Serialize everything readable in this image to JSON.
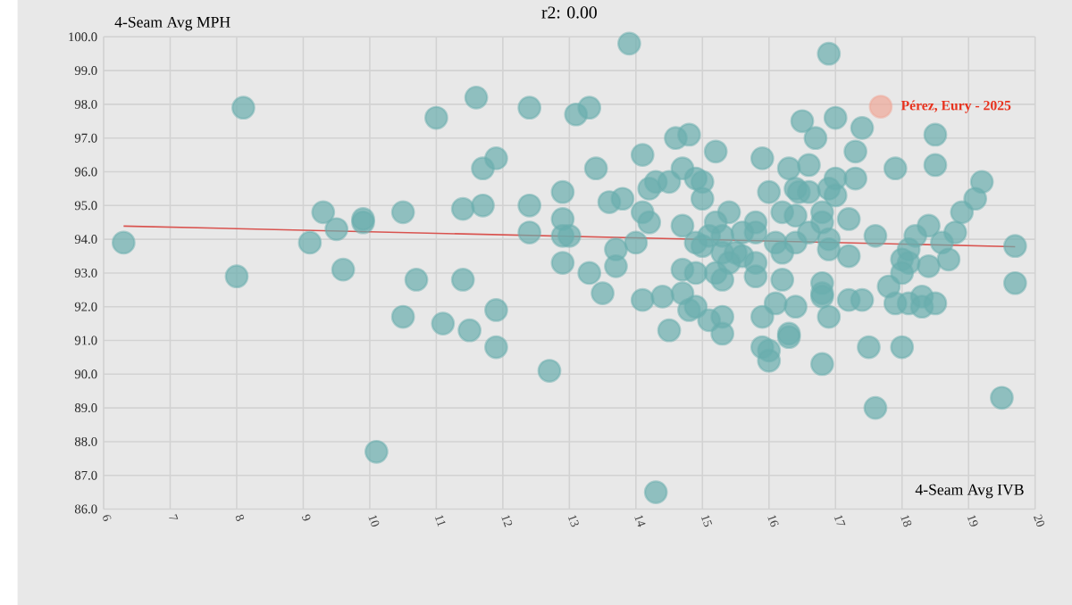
{
  "chart_data": {
    "type": "scatter",
    "title": "r2: 0.00",
    "xlabel": "4-Seam Avg IVB",
    "ylabel": "4-Seam Avg MPH",
    "xlim": [
      6,
      20
    ],
    "ylim": [
      86,
      100
    ],
    "xticks": [
      6,
      7,
      8,
      9,
      10,
      11,
      12,
      13,
      14,
      15,
      16,
      17,
      18,
      19,
      20
    ],
    "yticks": [
      {
        "value": 86,
        "label": "86.0"
      },
      {
        "value": 87,
        "label": "87.0"
      },
      {
        "value": 88,
        "label": "88.0"
      },
      {
        "value": 89,
        "label": "89.0"
      },
      {
        "value": 90,
        "label": "90.0"
      },
      {
        "value": 91,
        "label": "91.0"
      },
      {
        "value": 92,
        "label": "92.0"
      },
      {
        "value": 93,
        "label": "93.0"
      },
      {
        "value": 94,
        "label": "94.0"
      },
      {
        "value": 95,
        "label": "95.0"
      },
      {
        "value": 96,
        "label": "96.0"
      },
      {
        "value": 97,
        "label": "97.0"
      },
      {
        "value": 98,
        "label": "98.0"
      },
      {
        "value": 99,
        "label": "99.0"
      },
      {
        "value": 100,
        "label": "100.0"
      }
    ],
    "grid": true,
    "series": [
      {
        "color": "#6aaeae",
        "marker": "circle",
        "x": [
          6.3,
          8.0,
          8.1,
          9.1,
          9.3,
          9.5,
          9.6,
          9.9,
          9.9,
          10.1,
          10.5,
          10.5,
          10.7,
          11.0,
          11.1,
          11.4,
          11.4,
          11.5,
          11.6,
          11.7,
          11.7,
          11.9,
          11.9,
          11.9,
          12.4,
          12.4,
          12.4,
          12.7,
          13.9,
          13.1,
          13.3,
          16.9,
          16.5,
          17.0,
          17.4,
          16.7,
          18.5,
          14.6,
          14.8,
          14.1,
          15.2,
          15.9,
          17.3,
          13.4,
          14.7,
          16.3,
          16.6,
          17.9,
          18.5,
          14.3,
          14.5,
          14.9,
          15.0,
          14.2,
          17.0,
          17.3,
          19.2,
          12.9,
          16.0,
          16.4,
          16.45,
          16.6,
          16.9,
          17.0,
          15.0,
          19.1,
          13.6,
          13.8,
          14.1,
          15.4,
          16.2,
          16.4,
          16.8,
          18.9,
          12.9,
          14.2,
          14.7,
          15.2,
          15.8,
          16.8,
          17.2,
          18.4,
          15.8,
          15.6,
          15.3,
          16.6,
          18.8,
          12.9,
          13.0,
          14.0,
          14.9,
          15.0,
          15.1,
          16.1,
          16.4,
          16.9,
          17.6,
          18.2,
          18.6,
          19.7,
          13.7,
          15.3,
          15.5,
          15.6,
          16.2,
          16.9,
          18.1,
          18.0,
          12.9,
          13.7,
          15.4,
          15.8,
          17.2,
          18.1,
          18.7,
          18.4,
          13.3,
          14.7,
          14.9,
          15.2,
          15.8,
          18.0,
          15.3,
          16.2,
          16.8,
          17.8,
          19.7,
          13.5,
          14.7,
          16.8,
          14.1,
          14.4,
          14.8,
          14.9,
          14.5,
          15.1,
          15.3,
          15.3,
          15.9,
          16.1,
          16.4,
          16.9,
          16.3,
          16.3,
          15.9,
          16.0,
          16.0,
          16.8,
          16.8,
          17.2,
          17.4,
          17.9,
          18.1,
          18.3,
          18.3,
          18.5,
          17.5,
          18.0,
          17.6,
          19.5,
          14.3
        ],
        "values": [
          93.9,
          92.9,
          97.9,
          93.9,
          94.8,
          94.3,
          93.1,
          94.5,
          94.6,
          87.7,
          94.8,
          91.7,
          92.8,
          97.6,
          91.5,
          94.9,
          92.8,
          91.3,
          98.2,
          96.1,
          95.0,
          96.4,
          91.9,
          90.8,
          97.9,
          95.0,
          94.2,
          90.1,
          99.8,
          97.7,
          97.9,
          99.5,
          97.5,
          97.6,
          97.3,
          97.0,
          97.1,
          97.0,
          97.1,
          96.5,
          96.6,
          96.4,
          96.6,
          96.1,
          96.1,
          96.1,
          96.2,
          96.1,
          96.2,
          95.7,
          95.7,
          95.8,
          95.7,
          95.5,
          95.8,
          95.8,
          95.7,
          95.4,
          95.4,
          95.5,
          95.4,
          95.4,
          95.5,
          95.3,
          95.2,
          95.2,
          95.1,
          95.2,
          94.8,
          94.8,
          94.8,
          94.7,
          94.8,
          94.8,
          94.6,
          94.5,
          94.4,
          94.5,
          94.5,
          94.5,
          94.6,
          94.4,
          94.2,
          94.2,
          94.1,
          94.2,
          94.2,
          94.1,
          94.1,
          93.9,
          93.9,
          93.8,
          94.1,
          93.9,
          93.9,
          94.0,
          94.1,
          94.1,
          93.9,
          93.8,
          93.7,
          93.6,
          93.6,
          93.5,
          93.6,
          93.7,
          93.7,
          93.4,
          93.3,
          93.2,
          93.3,
          93.3,
          93.5,
          93.3,
          93.4,
          93.2,
          93.0,
          93.1,
          93.0,
          93.0,
          92.9,
          93.0,
          92.8,
          92.8,
          92.7,
          92.6,
          92.7,
          92.4,
          92.4,
          92.4,
          92.2,
          92.3,
          91.9,
          92.0,
          91.3,
          91.6,
          91.7,
          91.2,
          91.7,
          92.1,
          92.0,
          91.7,
          91.2,
          91.1,
          90.8,
          90.7,
          90.4,
          90.3,
          92.3,
          92.2,
          92.2,
          92.1,
          92.1,
          92.3,
          92.0,
          92.1,
          90.8,
          90.8,
          89.0,
          89.3,
          86.5
        ]
      },
      {
        "color": "#f0a898",
        "marker": "circle",
        "x": [
          17.68
        ],
        "values": [
          97.93
        ]
      },
      {
        "type": "line",
        "marker": "none",
        "color": "#d9534f",
        "x": [
          6.3,
          19.7
        ],
        "values": [
          94.39,
          93.78
        ]
      }
    ],
    "annotations": [
      {
        "text": "Pérez, Eury - 2025",
        "x": 17.68,
        "y": 97.93
      }
    ]
  }
}
